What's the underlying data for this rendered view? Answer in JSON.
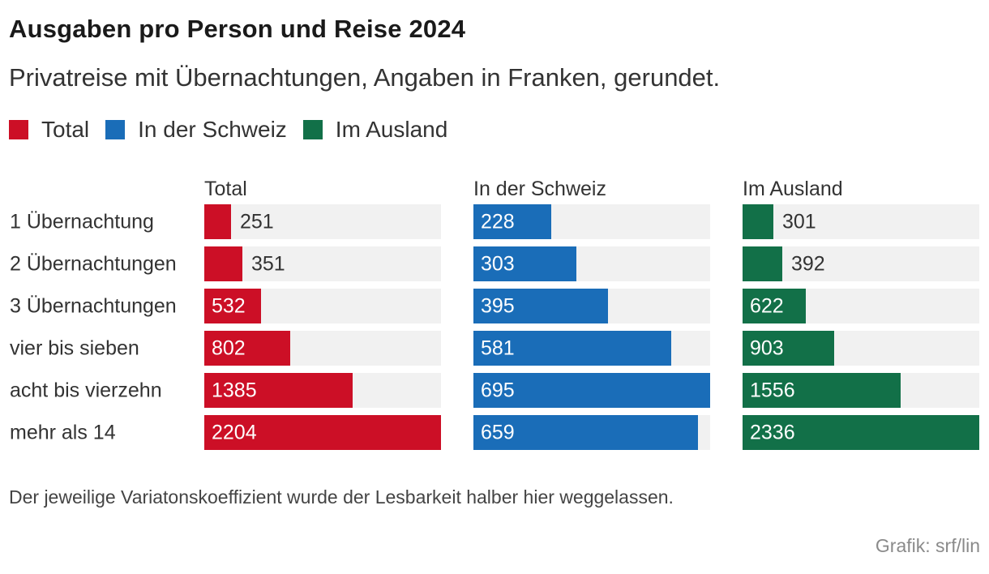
{
  "header": {
    "title": "Ausgaben pro Person und Reise 2024",
    "subtitle": "Privatreise mit Übernachtungen, Angaben in Franken, gerundet."
  },
  "legend": [
    {
      "label": "Total",
      "color": "#cc0f26"
    },
    {
      "label": "In der Schweiz",
      "color": "#1a6db8"
    },
    {
      "label": "Im Ausland",
      "color": "#127048"
    }
  ],
  "chart_data": {
    "type": "bar",
    "orientation": "horizontal",
    "layout": "small-multiples",
    "title": "Ausgaben pro Person und Reise 2024",
    "categories": [
      "1 Übernachtung",
      "2 Übernachtungen",
      "3 Übernachtungen",
      "vier bis sieben",
      "acht bis vierzehn",
      "mehr als 14"
    ],
    "series": [
      {
        "name": "Total",
        "color": "#cc0f26",
        "values": [
          251,
          351,
          532,
          802,
          1385,
          2204
        ]
      },
      {
        "name": "In der Schweiz",
        "color": "#1a6db8",
        "values": [
          228,
          303,
          395,
          581,
          695,
          659
        ]
      },
      {
        "name": "Im Ausland",
        "color": "#127048",
        "values": [
          301,
          392,
          622,
          903,
          1556,
          2336
        ]
      }
    ],
    "track_color": "#f1f1f1"
  },
  "footer": {
    "note": "Der jeweilige Variatonskoeffizient wurde der Lesbarkeit halber hier weggelassen.",
    "credit": "Grafik: srf/lin"
  }
}
